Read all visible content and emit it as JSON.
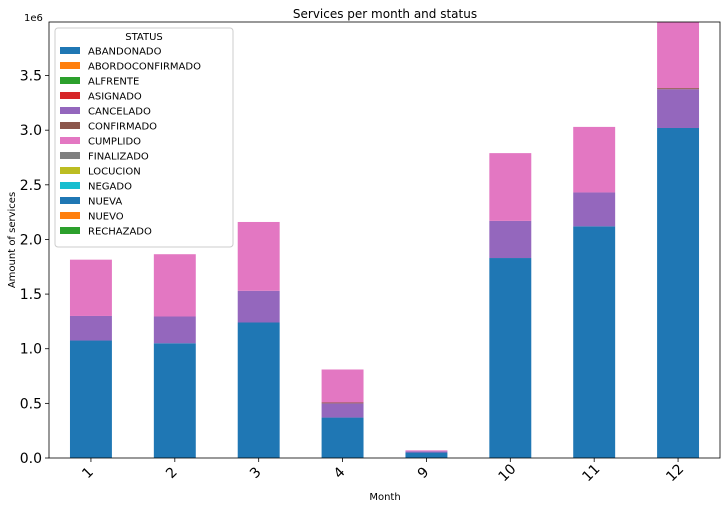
{
  "chart_data": {
    "type": "bar",
    "stacked": true,
    "title": "Services per month and status",
    "xlabel": "Month",
    "ylabel": "Amount of services",
    "y_offset_label": "1e6",
    "y_scale": 1000000,
    "ylim": [
      0,
      3990000
    ],
    "yticks": [
      0.0,
      0.5,
      1.0,
      1.5,
      2.0,
      2.5,
      3.0,
      3.5
    ],
    "ytick_labels": [
      "0.0",
      "0.5",
      "1.0",
      "1.5",
      "2.0",
      "2.5",
      "3.0",
      "3.5"
    ],
    "categories": [
      "1",
      "2",
      "3",
      "4",
      "9",
      "10",
      "11",
      "12"
    ],
    "legend": {
      "title": "STATUS",
      "placement": "upper-left"
    },
    "series": [
      {
        "name": "ABANDONADO",
        "color": "#1f77b4",
        "values": [
          1075000,
          1050000,
          1240000,
          370000,
          50000,
          1830000,
          2120000,
          3020000
        ]
      },
      {
        "name": "ABORDOCONFIRMADO",
        "color": "#ff7f0e",
        "values": [
          0,
          0,
          0,
          0,
          0,
          0,
          0,
          0
        ]
      },
      {
        "name": "ALFRENTE",
        "color": "#2ca02c",
        "values": [
          0,
          0,
          0,
          0,
          0,
          0,
          0,
          0
        ]
      },
      {
        "name": "ASIGNADO",
        "color": "#d62728",
        "values": [
          0,
          0,
          0,
          0,
          0,
          0,
          0,
          0
        ]
      },
      {
        "name": "CANCELADO",
        "color": "#9467bd",
        "values": [
          225000,
          245000,
          290000,
          130000,
          12000,
          340000,
          310000,
          355000
        ]
      },
      {
        "name": "CONFIRMADO",
        "color": "#8c564b",
        "values": [
          0,
          0,
          0,
          8000,
          0,
          0,
          0,
          10000
        ]
      },
      {
        "name": "CUMPLIDO",
        "color": "#e377c2",
        "values": [
          515000,
          570000,
          630000,
          302000,
          8000,
          620000,
          600000,
          605000
        ]
      },
      {
        "name": "FINALIZADO",
        "color": "#7f7f7f",
        "values": [
          0,
          0,
          0,
          0,
          0,
          0,
          0,
          0
        ]
      },
      {
        "name": "LOCUCION",
        "color": "#bcbd22",
        "values": [
          0,
          0,
          0,
          0,
          0,
          0,
          0,
          0
        ]
      },
      {
        "name": "NEGADO",
        "color": "#17becf",
        "values": [
          0,
          0,
          0,
          0,
          0,
          0,
          0,
          0
        ]
      },
      {
        "name": "NUEVA",
        "color": "#1f77b4",
        "values": [
          0,
          0,
          0,
          0,
          0,
          0,
          0,
          0
        ]
      },
      {
        "name": "NUEVO",
        "color": "#ff7f0e",
        "values": [
          0,
          0,
          0,
          0,
          0,
          0,
          0,
          0
        ]
      },
      {
        "name": "RECHAZADO",
        "color": "#2ca02c",
        "values": [
          0,
          0,
          0,
          0,
          0,
          0,
          0,
          0
        ]
      }
    ]
  }
}
